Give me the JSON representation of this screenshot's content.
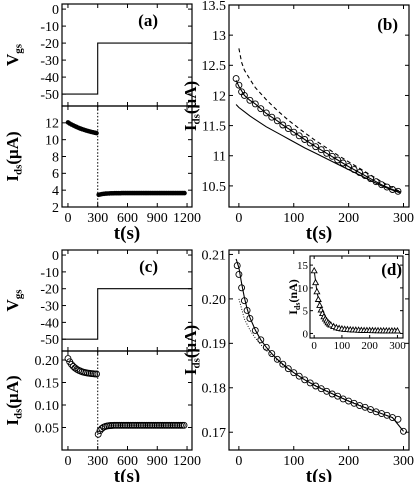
{
  "figure": {
    "panel_labels": [
      "(a)",
      "(b)",
      "(c)",
      "(d)"
    ]
  },
  "chart_data": [
    {
      "id": "a-top",
      "panel": "(a)",
      "type": "line",
      "ylabel": "V",
      "ylabel_sub": "gs",
      "xlim": [
        -60,
        1250
      ],
      "ylim": [
        -57,
        3
      ],
      "yticks": [
        0,
        -10,
        -20,
        -30,
        -40,
        -50
      ],
      "series": [
        {
          "style": "solid",
          "x": [
            -60,
            300,
            300,
            1250
          ],
          "y": [
            -50,
            -50,
            -20,
            -20
          ]
        }
      ]
    },
    {
      "id": "a-bottom",
      "panel": "(a)",
      "type": "scatter",
      "ylabel": "I",
      "ylabel_sub": "ds",
      "ylabel_rest": "(μA)",
      "xlabel": "t(s)",
      "xlim": [
        -60,
        1250
      ],
      "ylim": [
        2,
        14
      ],
      "xticks": [
        0,
        300,
        600,
        900,
        1200
      ],
      "yticks": [
        2,
        4,
        6,
        8,
        10,
        12
      ],
      "vline": 300,
      "series": [
        {
          "marker": "circle-filled",
          "segments": [
            {
              "t_start": 0,
              "t_end": 290,
              "y_start": 12.05,
              "y_inf": 10.2,
              "tau": 250
            },
            {
              "t_start": 310,
              "t_end": 1180,
              "y_start": 3.45,
              "y_inf": 3.65,
              "tau": 60
            }
          ]
        }
      ]
    },
    {
      "id": "b",
      "panel": "(b)",
      "type": "line",
      "ylabel": "I",
      "ylabel_sub": "ds",
      "ylabel_rest": "(μA)",
      "xlabel": "t(s)",
      "xlim": [
        -18,
        310
      ],
      "ylim": [
        10.15,
        13.5
      ],
      "xticks": [
        0,
        100,
        200,
        300
      ],
      "yticks": [
        10.5,
        11.0,
        11.5,
        12.0,
        12.5,
        13.0,
        13.5
      ],
      "series": [
        {
          "style": "dashed",
          "x": [
            0,
            5,
            10,
            20,
            30,
            40,
            50,
            60,
            70,
            80,
            90,
            100,
            120,
            140,
            160,
            180,
            200,
            220,
            240,
            260,
            280,
            295
          ],
          "y": [
            12.78,
            12.55,
            12.42,
            12.27,
            12.13,
            12.03,
            11.93,
            11.84,
            11.75,
            11.67,
            11.59,
            11.52,
            11.38,
            11.25,
            11.13,
            11.01,
            10.9,
            10.79,
            10.68,
            10.57,
            10.47,
            10.4
          ]
        },
        {
          "style": "solid",
          "x": [
            -5,
            0,
            10,
            20,
            30,
            40,
            50,
            60,
            70,
            80,
            90,
            100,
            120,
            140,
            160,
            180,
            200,
            220,
            240,
            260,
            280,
            295
          ],
          "y": [
            11.85,
            11.8,
            11.73,
            11.66,
            11.6,
            11.54,
            11.48,
            11.43,
            11.38,
            11.33,
            11.28,
            11.23,
            11.13,
            11.04,
            10.95,
            10.86,
            10.77,
            10.68,
            10.59,
            10.5,
            10.43,
            10.38
          ]
        },
        {
          "style": "solid",
          "x": [
            -5,
            0,
            10,
            20,
            30,
            40,
            50,
            60,
            70,
            80,
            90,
            100,
            120,
            140,
            160,
            180,
            200,
            220,
            240,
            260,
            280,
            295
          ],
          "y": [
            12.25,
            12.15,
            12.0,
            11.92,
            11.86,
            11.78,
            11.7,
            11.64,
            11.58,
            11.51,
            11.45,
            11.39,
            11.27,
            11.15,
            11.04,
            10.93,
            10.82,
            10.72,
            10.62,
            10.52,
            10.44,
            10.4
          ]
        },
        {
          "style": "markers",
          "marker": "circle-open",
          "x": [
            -5,
            0,
            5,
            10,
            20,
            30,
            40,
            50,
            60,
            70,
            80,
            90,
            100,
            110,
            120,
            130,
            140,
            150,
            160,
            170,
            180,
            190,
            200,
            210,
            220,
            230,
            240,
            250,
            260,
            270,
            280,
            290
          ],
          "y": [
            12.28,
            12.17,
            12.06,
            12.0,
            11.92,
            11.86,
            11.78,
            11.71,
            11.64,
            11.58,
            11.51,
            11.45,
            11.39,
            11.33,
            11.27,
            11.21,
            11.15,
            11.1,
            11.04,
            10.99,
            10.93,
            10.88,
            10.82,
            10.77,
            10.72,
            10.67,
            10.62,
            10.57,
            10.52,
            10.48,
            10.44,
            10.41
          ]
        }
      ]
    },
    {
      "id": "c-top",
      "panel": "(c)",
      "type": "line",
      "ylabel": "V",
      "ylabel_sub": "gs",
      "xlim": [
        -60,
        1250
      ],
      "ylim": [
        -57,
        3
      ],
      "yticks": [
        0,
        -10,
        -20,
        -30,
        -40,
        -50
      ],
      "series": [
        {
          "style": "solid",
          "x": [
            -60,
            300,
            300,
            1250
          ],
          "y": [
            -50,
            -50,
            -20,
            -20
          ]
        }
      ]
    },
    {
      "id": "c-bottom",
      "panel": "(c)",
      "type": "scatter",
      "ylabel": "I",
      "ylabel_sub": "ds",
      "ylabel_rest": "(μA)",
      "xlabel": "t(s)",
      "xlim": [
        -60,
        1250
      ],
      "ylim": [
        0.0,
        0.22
      ],
      "xticks": [
        0,
        300,
        600,
        900,
        1200
      ],
      "yticks": [
        0.05,
        0.1,
        0.15,
        0.2
      ],
      "ytick_labels": [
        "0.05",
        "0.10",
        "0.15",
        "0.20"
      ],
      "vline": 300,
      "series": [
        {
          "marker": "circle-open",
          "segments": [
            {
              "t_start": 0,
              "t_end": 290,
              "y_start": 0.203,
              "y_inf": 0.168,
              "tau": 80
            },
            {
              "t_start": 305,
              "t_end": 1180,
              "y_start": 0.035,
              "y_inf": 0.055,
              "tau": 35
            }
          ]
        }
      ]
    },
    {
      "id": "d",
      "panel": "(d)",
      "type": "line",
      "ylabel": "I",
      "ylabel_sub": "ds",
      "ylabel_rest": "(μA)",
      "xlabel": "t(s)",
      "xlim": [
        -18,
        310
      ],
      "ylim": [
        0.166,
        0.211
      ],
      "xticks": [
        0,
        100,
        200,
        300
      ],
      "yticks": [
        0.17,
        0.18,
        0.19,
        0.2,
        0.21
      ],
      "ytick_labels": [
        "0.17",
        "0.18",
        "0.19",
        "0.20",
        "0.21"
      ],
      "series": [
        {
          "style": "dotted",
          "x": [
            0,
            10,
            20,
            30,
            40,
            50,
            60,
            70,
            80,
            90,
            100,
            120,
            140,
            160,
            180,
            200,
            220,
            240,
            260,
            280,
            300
          ],
          "y": [
            0.2,
            0.1955,
            0.193,
            0.1912,
            0.1897,
            0.1884,
            0.1872,
            0.1861,
            0.1851,
            0.1842,
            0.1834,
            0.1818,
            0.1805,
            0.1793,
            0.1782,
            0.1771,
            0.1761,
            0.1751,
            0.1742,
            0.1733,
            0.1702
          ]
        },
        {
          "style": "solid",
          "x": [
            -5,
            0,
            5,
            10,
            15,
            20,
            30,
            40,
            50,
            60,
            70,
            80,
            90,
            100,
            120,
            140,
            160,
            180,
            200,
            220,
            240,
            260,
            280,
            300
          ],
          "y": [
            0.209,
            0.207,
            0.2035,
            0.2003,
            0.1978,
            0.1958,
            0.193,
            0.1908,
            0.1891,
            0.1877,
            0.1864,
            0.1853,
            0.1843,
            0.1834,
            0.1818,
            0.1804,
            0.1792,
            0.1781,
            0.177,
            0.176,
            0.1751,
            0.1742,
            0.1733,
            0.1702
          ]
        },
        {
          "style": "markers",
          "marker": "circle-open",
          "x": [
            -3,
            0,
            5,
            10,
            15,
            20,
            30,
            40,
            50,
            60,
            70,
            80,
            90,
            100,
            110,
            120,
            130,
            140,
            150,
            160,
            170,
            180,
            190,
            200,
            210,
            220,
            230,
            240,
            250,
            260,
            270,
            280,
            290,
            300
          ],
          "y": [
            0.2075,
            0.2055,
            0.2025,
            0.1996,
            0.1974,
            0.1956,
            0.1929,
            0.1908,
            0.1891,
            0.1877,
            0.1864,
            0.1853,
            0.1843,
            0.1834,
            0.1826,
            0.1818,
            0.1811,
            0.1804,
            0.1798,
            0.1792,
            0.1786,
            0.1781,
            0.1775,
            0.177,
            0.1765,
            0.176,
            0.1756,
            0.1751,
            0.1746,
            0.1742,
            0.1738,
            0.1733,
            0.1729,
            0.1702
          ]
        }
      ]
    },
    {
      "id": "d-inset",
      "panel": "(d)",
      "type": "line",
      "ylabel": "I",
      "ylabel_sub": "ds",
      "ylabel_rest": "(nA)",
      "xlim": [
        -15,
        320
      ],
      "ylim": [
        -1,
        17
      ],
      "xticks": [
        0,
        100,
        200,
        300
      ],
      "yticks": [
        0,
        5,
        10,
        15
      ],
      "series": [
        {
          "style": "solid",
          "x": [
            0,
            10,
            20,
            30,
            40,
            50,
            60,
            80,
            100,
            130,
            160,
            200,
            250,
            300
          ],
          "y": [
            13.8,
            9.2,
            6.2,
            4.4,
            3.2,
            2.4,
            1.9,
            1.3,
            1.05,
            0.85,
            0.75,
            0.68,
            0.62,
            0.6
          ]
        },
        {
          "style": "markers",
          "marker": "triangle-open",
          "x": [
            0,
            5,
            10,
            15,
            20,
            25,
            30,
            35,
            40,
            45,
            50,
            55,
            60,
            70,
            80,
            90,
            100,
            110,
            120,
            130,
            140,
            150,
            160,
            170,
            180,
            190,
            200,
            210,
            220,
            230,
            240,
            250,
            260,
            270,
            280,
            290,
            300
          ],
          "y": [
            13.8,
            11.2,
            9.2,
            7.5,
            6.2,
            5.2,
            4.4,
            3.7,
            3.2,
            2.8,
            2.4,
            2.1,
            1.9,
            1.55,
            1.3,
            1.15,
            1.05,
            0.95,
            0.9,
            0.85,
            0.8,
            0.78,
            0.75,
            0.72,
            0.7,
            0.69,
            0.68,
            0.66,
            0.65,
            0.64,
            0.63,
            0.62,
            0.62,
            0.61,
            0.61,
            0.6,
            0.6
          ]
        }
      ]
    }
  ]
}
